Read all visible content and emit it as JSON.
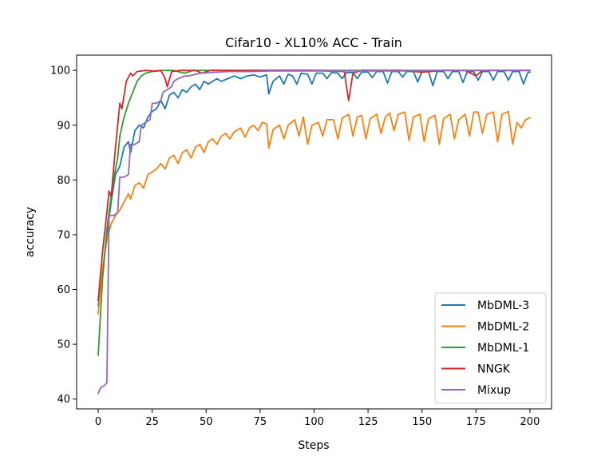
{
  "chart_data": {
    "type": "line",
    "title": "Cifar10 - XL10% ACC - Train",
    "xlabel": "Steps",
    "ylabel": "accuracy",
    "xlim": [
      -10,
      210
    ],
    "ylim": [
      38.2,
      102.8
    ],
    "xticks": [
      0,
      25,
      50,
      75,
      100,
      125,
      150,
      175,
      200
    ],
    "yticks": [
      40,
      50,
      60,
      70,
      80,
      90,
      100
    ],
    "grid": false,
    "legend_position": "lower-right",
    "series": [
      {
        "name": "MbDML-3",
        "color": "#1f77b4",
        "points": [
          [
            0,
            57
          ],
          [
            2,
            63
          ],
          [
            4,
            70
          ],
          [
            6,
            76
          ],
          [
            8,
            81
          ],
          [
            10,
            82.5
          ],
          [
            12,
            86
          ],
          [
            14,
            87
          ],
          [
            15,
            85
          ],
          [
            17,
            89
          ],
          [
            19,
            90
          ],
          [
            21,
            89.5
          ],
          [
            23,
            91.5
          ],
          [
            25,
            92.5
          ],
          [
            27,
            93
          ],
          [
            29,
            94.5
          ],
          [
            31,
            93
          ],
          [
            33,
            95.5
          ],
          [
            35,
            96
          ],
          [
            37,
            95
          ],
          [
            39,
            96.5
          ],
          [
            41,
            96
          ],
          [
            43,
            97
          ],
          [
            45,
            97.5
          ],
          [
            47,
            96.5
          ],
          [
            49,
            98
          ],
          [
            51,
            97.5
          ],
          [
            53,
            98
          ],
          [
            55,
            98.5
          ],
          [
            57,
            98
          ],
          [
            60,
            98.5
          ],
          [
            63,
            99
          ],
          [
            66,
            98.5
          ],
          [
            69,
            99
          ],
          [
            72,
            99.2
          ],
          [
            75,
            98.8
          ],
          [
            78,
            99.2
          ],
          [
            79,
            95.7
          ],
          [
            81,
            98
          ],
          [
            84,
            99
          ],
          [
            86,
            97.5
          ],
          [
            88,
            99.3
          ],
          [
            90,
            99
          ],
          [
            92,
            97.5
          ],
          [
            94,
            99.5
          ],
          [
            97,
            99.3
          ],
          [
            99,
            97.5
          ],
          [
            101,
            99.5
          ],
          [
            104,
            99.5
          ],
          [
            106,
            98.5
          ],
          [
            108,
            99.6
          ],
          [
            111,
            99.5
          ],
          [
            113,
            98.5
          ],
          [
            115,
            99.6
          ],
          [
            118,
            99.6
          ],
          [
            120,
            98.5
          ],
          [
            122,
            99.7
          ],
          [
            125,
            99.7
          ],
          [
            127,
            98.7
          ],
          [
            129,
            99.8
          ],
          [
            132,
            99.8
          ],
          [
            134,
            97.7
          ],
          [
            136,
            99.8
          ],
          [
            139,
            99.8
          ],
          [
            141,
            98.8
          ],
          [
            143,
            99.8
          ],
          [
            146,
            99.8
          ],
          [
            148,
            97.9
          ],
          [
            150,
            99.8
          ],
          [
            153,
            99.8
          ],
          [
            155,
            97.2
          ],
          [
            157,
            99.8
          ],
          [
            160,
            99.8
          ],
          [
            162,
            98.5
          ],
          [
            164,
            99.8
          ],
          [
            167,
            99.8
          ],
          [
            169,
            97.8
          ],
          [
            171,
            99.8
          ],
          [
            174,
            99.8
          ],
          [
            176,
            98.2
          ],
          [
            178,
            99.8
          ],
          [
            181,
            99.8
          ],
          [
            183,
            98.2
          ],
          [
            185,
            99.8
          ],
          [
            188,
            99.8
          ],
          [
            190,
            98.2
          ],
          [
            192,
            99.8
          ],
          [
            195,
            99.8
          ],
          [
            197,
            97.5
          ],
          [
            199,
            99.6
          ],
          [
            200,
            99.7
          ]
        ]
      },
      {
        "name": "MbDML-2",
        "color": "#ff7f0e",
        "points": [
          [
            0,
            55.5
          ],
          [
            2,
            64
          ],
          [
            4,
            69
          ],
          [
            6,
            72
          ],
          [
            8,
            73.5
          ],
          [
            10,
            74.5
          ],
          [
            12,
            76
          ],
          [
            14,
            77.5
          ],
          [
            15,
            76.5
          ],
          [
            17,
            79
          ],
          [
            19,
            79.5
          ],
          [
            21,
            78.5
          ],
          [
            23,
            81
          ],
          [
            25,
            81.5
          ],
          [
            27,
            82
          ],
          [
            29,
            83
          ],
          [
            31,
            82
          ],
          [
            33,
            84
          ],
          [
            35,
            84.5
          ],
          [
            37,
            83
          ],
          [
            39,
            85
          ],
          [
            41,
            85.5
          ],
          [
            43,
            84
          ],
          [
            45,
            86
          ],
          [
            47,
            86.5
          ],
          [
            49,
            85
          ],
          [
            51,
            87
          ],
          [
            53,
            87.5
          ],
          [
            55,
            86.5
          ],
          [
            57,
            88
          ],
          [
            59,
            88.5
          ],
          [
            61,
            87.5
          ],
          [
            63,
            88.8
          ],
          [
            66,
            89.5
          ],
          [
            68,
            87.8
          ],
          [
            70,
            89.5
          ],
          [
            72,
            90
          ],
          [
            74,
            89
          ],
          [
            76,
            90.5
          ],
          [
            78,
            90.2
          ],
          [
            79,
            85.8
          ],
          [
            81,
            89.2
          ],
          [
            84,
            90
          ],
          [
            86,
            87.5
          ],
          [
            88,
            90
          ],
          [
            91,
            91
          ],
          [
            93,
            88
          ],
          [
            95,
            91.5
          ],
          [
            97,
            86.5
          ],
          [
            99,
            90
          ],
          [
            102,
            90.5
          ],
          [
            104,
            88
          ],
          [
            106,
            91
          ],
          [
            109,
            91
          ],
          [
            111,
            87.5
          ],
          [
            113,
            91.3
          ],
          [
            116,
            92
          ],
          [
            118,
            88
          ],
          [
            120,
            91.5
          ],
          [
            122,
            91.8
          ],
          [
            124,
            87.5
          ],
          [
            126,
            91.2
          ],
          [
            129,
            92
          ],
          [
            131,
            88.5
          ],
          [
            133,
            91.5
          ],
          [
            135,
            92.2
          ],
          [
            137,
            89
          ],
          [
            139,
            92
          ],
          [
            142,
            92.4
          ],
          [
            144,
            87.2
          ],
          [
            146,
            91.5
          ],
          [
            149,
            92
          ],
          [
            151,
            87
          ],
          [
            153,
            91.2
          ],
          [
            156,
            91.8
          ],
          [
            158,
            86.5
          ],
          [
            160,
            91.2
          ],
          [
            163,
            92
          ],
          [
            165,
            87.5
          ],
          [
            167,
            91
          ],
          [
            170,
            92
          ],
          [
            172,
            88
          ],
          [
            174,
            92.4
          ],
          [
            176,
            92.4
          ],
          [
            178,
            88.5
          ],
          [
            180,
            92
          ],
          [
            183,
            92.4
          ],
          [
            185,
            87
          ],
          [
            187,
            92
          ],
          [
            190,
            92.5
          ],
          [
            192,
            86.5
          ],
          [
            194,
            90.5
          ],
          [
            196,
            89.5
          ],
          [
            198,
            91
          ],
          [
            200,
            91.4
          ]
        ]
      },
      {
        "name": "MbDML-1",
        "color": "#2ca02c",
        "points": [
          [
            0,
            48
          ],
          [
            2,
            62
          ],
          [
            4,
            71
          ],
          [
            6,
            77
          ],
          [
            8,
            82
          ],
          [
            9,
            84
          ],
          [
            10,
            88
          ],
          [
            12,
            91.5
          ],
          [
            14,
            94
          ],
          [
            16,
            96
          ],
          [
            18,
            98
          ],
          [
            20,
            99
          ],
          [
            22,
            99.5
          ],
          [
            25,
            99.8
          ],
          [
            30,
            100
          ],
          [
            35,
            100
          ],
          [
            40,
            99.5
          ],
          [
            44,
            100
          ],
          [
            50,
            100
          ],
          [
            60,
            100
          ],
          [
            80,
            100
          ],
          [
            100,
            100
          ],
          [
            120,
            100
          ],
          [
            140,
            100
          ],
          [
            160,
            100
          ],
          [
            180,
            100
          ],
          [
            200,
            100
          ]
        ]
      },
      {
        "name": "NNGK",
        "color": "#d62728",
        "points": [
          [
            0,
            58
          ],
          [
            2,
            67
          ],
          [
            4,
            74
          ],
          [
            5,
            78
          ],
          [
            6,
            77
          ],
          [
            8,
            86
          ],
          [
            10,
            94
          ],
          [
            11,
            93
          ],
          [
            13,
            98
          ],
          [
            15,
            99.5
          ],
          [
            16,
            99
          ],
          [
            18,
            99.8
          ],
          [
            22,
            100
          ],
          [
            26,
            99.9
          ],
          [
            29,
            100
          ],
          [
            31,
            98.5
          ],
          [
            32,
            97
          ],
          [
            34,
            99.8
          ],
          [
            38,
            100
          ],
          [
            45,
            100
          ],
          [
            48,
            99.5
          ],
          [
            52,
            100
          ],
          [
            60,
            100
          ],
          [
            80,
            100
          ],
          [
            100,
            100
          ],
          [
            114,
            99.8
          ],
          [
            115,
            97
          ],
          [
            116,
            94.5
          ],
          [
            118,
            99.5
          ],
          [
            122,
            100
          ],
          [
            130,
            100
          ],
          [
            140,
            100
          ],
          [
            150,
            99.7
          ],
          [
            160,
            100
          ],
          [
            170,
            100
          ],
          [
            175,
            99
          ],
          [
            178,
            100
          ],
          [
            190,
            100
          ],
          [
            200,
            100
          ]
        ]
      },
      {
        "name": "Mixup",
        "color": "#9467bd",
        "points": [
          [
            0,
            41
          ],
          [
            1,
            42
          ],
          [
            3,
            42.5
          ],
          [
            4,
            43
          ],
          [
            5,
            73.5
          ],
          [
            7,
            73.5
          ],
          [
            9,
            74
          ],
          [
            10,
            80.5
          ],
          [
            12,
            80.5
          ],
          [
            14,
            81
          ],
          [
            15,
            86.5
          ],
          [
            17,
            86.5
          ],
          [
            19,
            87
          ],
          [
            20,
            90
          ],
          [
            22,
            90.5
          ],
          [
            24,
            91
          ],
          [
            25,
            94
          ],
          [
            27,
            94
          ],
          [
            29,
            94.5
          ],
          [
            30,
            96
          ],
          [
            32,
            96.5
          ],
          [
            34,
            97
          ],
          [
            35,
            98
          ],
          [
            37,
            98.5
          ],
          [
            40,
            99
          ],
          [
            42,
            99
          ],
          [
            45,
            99.3
          ],
          [
            48,
            99.5
          ],
          [
            52,
            99.6
          ],
          [
            60,
            99.8
          ],
          [
            70,
            99.8
          ],
          [
            80,
            99.9
          ],
          [
            100,
            99.9
          ],
          [
            120,
            99.9
          ],
          [
            140,
            99.9
          ],
          [
            160,
            100
          ],
          [
            180,
            100
          ],
          [
            200,
            100
          ]
        ]
      }
    ]
  }
}
